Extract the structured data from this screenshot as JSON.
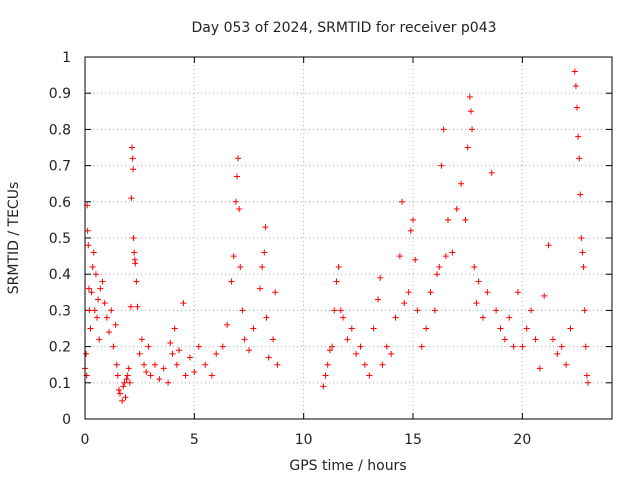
{
  "chart_data": {
    "type": "scatter",
    "title": "Day 053 of 2024, SRMTID for receiver p043",
    "xlabel": "GPS time / hours",
    "ylabel": "SRMTID / TECUs",
    "xlim": [
      0,
      24.1
    ],
    "ylim": [
      0,
      1
    ],
    "xticks": [
      0,
      5,
      10,
      15,
      20
    ],
    "xtick_labels": [
      "0",
      "5",
      "10",
      "15",
      "20"
    ],
    "yticks": [
      0,
      0.1,
      0.2,
      0.3,
      0.4,
      0.5,
      0.6,
      0.7,
      0.8,
      0.9,
      1
    ],
    "ytick_labels": [
      "0",
      "0.1",
      "0.2",
      "0.3",
      "0.4",
      "0.5",
      "0.6",
      "0.7",
      "0.8",
      "0.9",
      "1"
    ],
    "grid": true,
    "marker": "+",
    "color": "#ff0000",
    "series": [
      {
        "name": "SRMTID",
        "points": [
          [
            0.0,
            0.14
          ],
          [
            0.05,
            0.18
          ],
          [
            0.08,
            0.12
          ],
          [
            0.1,
            0.59
          ],
          [
            0.12,
            0.52
          ],
          [
            0.15,
            0.48
          ],
          [
            0.18,
            0.36
          ],
          [
            0.2,
            0.3
          ],
          [
            0.25,
            0.25
          ],
          [
            0.3,
            0.35
          ],
          [
            0.35,
            0.42
          ],
          [
            0.4,
            0.46
          ],
          [
            0.45,
            0.3
          ],
          [
            0.5,
            0.4
          ],
          [
            0.55,
            0.28
          ],
          [
            0.6,
            0.33
          ],
          [
            0.65,
            0.22
          ],
          [
            0.7,
            0.36
          ],
          [
            0.8,
            0.38
          ],
          [
            0.9,
            0.32
          ],
          [
            1.0,
            0.28
          ],
          [
            1.1,
            0.24
          ],
          [
            1.2,
            0.3
          ],
          [
            1.3,
            0.2
          ],
          [
            1.4,
            0.26
          ],
          [
            1.45,
            0.15
          ],
          [
            1.5,
            0.12
          ],
          [
            1.55,
            0.08
          ],
          [
            1.6,
            0.07
          ],
          [
            1.7,
            0.05
          ],
          [
            1.75,
            0.09
          ],
          [
            1.8,
            0.1
          ],
          [
            1.85,
            0.06
          ],
          [
            1.9,
            0.11
          ],
          [
            1.95,
            0.12
          ],
          [
            2.0,
            0.14
          ],
          [
            2.05,
            0.1
          ],
          [
            2.1,
            0.31
          ],
          [
            2.12,
            0.61
          ],
          [
            2.15,
            0.75
          ],
          [
            2.18,
            0.72
          ],
          [
            2.2,
            0.69
          ],
          [
            2.22,
            0.5
          ],
          [
            2.25,
            0.46
          ],
          [
            2.28,
            0.44
          ],
          [
            2.3,
            0.43
          ],
          [
            2.35,
            0.38
          ],
          [
            2.4,
            0.31
          ],
          [
            2.5,
            0.18
          ],
          [
            2.6,
            0.22
          ],
          [
            2.7,
            0.15
          ],
          [
            2.8,
            0.13
          ],
          [
            2.9,
            0.2
          ],
          [
            3.0,
            0.12
          ],
          [
            3.2,
            0.15
          ],
          [
            3.4,
            0.11
          ],
          [
            3.6,
            0.14
          ],
          [
            3.8,
            0.1
          ],
          [
            3.9,
            0.21
          ],
          [
            4.0,
            0.18
          ],
          [
            4.1,
            0.25
          ],
          [
            4.2,
            0.15
          ],
          [
            4.3,
            0.19
          ],
          [
            4.5,
            0.32
          ],
          [
            4.6,
            0.12
          ],
          [
            4.8,
            0.17
          ],
          [
            5.0,
            0.13
          ],
          [
            5.2,
            0.2
          ],
          [
            5.5,
            0.15
          ],
          [
            5.8,
            0.12
          ],
          [
            6.0,
            0.18
          ],
          [
            6.3,
            0.2
          ],
          [
            6.5,
            0.26
          ],
          [
            6.7,
            0.38
          ],
          [
            6.8,
            0.45
          ],
          [
            6.9,
            0.6
          ],
          [
            6.95,
            0.67
          ],
          [
            7.0,
            0.72
          ],
          [
            7.05,
            0.58
          ],
          [
            7.1,
            0.42
          ],
          [
            7.2,
            0.3
          ],
          [
            7.3,
            0.22
          ],
          [
            7.5,
            0.19
          ],
          [
            7.7,
            0.25
          ],
          [
            8.0,
            0.36
          ],
          [
            8.1,
            0.42
          ],
          [
            8.2,
            0.46
          ],
          [
            8.25,
            0.53
          ],
          [
            8.3,
            0.28
          ],
          [
            8.4,
            0.17
          ],
          [
            8.6,
            0.22
          ],
          [
            8.7,
            0.35
          ],
          [
            8.8,
            0.15
          ],
          [
            10.9,
            0.09
          ],
          [
            11.0,
            0.12
          ],
          [
            11.1,
            0.15
          ],
          [
            11.2,
            0.19
          ],
          [
            11.3,
            0.2
          ],
          [
            11.4,
            0.3
          ],
          [
            11.5,
            0.38
          ],
          [
            11.6,
            0.42
          ],
          [
            11.7,
            0.3
          ],
          [
            11.8,
            0.28
          ],
          [
            12.0,
            0.22
          ],
          [
            12.2,
            0.25
          ],
          [
            12.4,
            0.18
          ],
          [
            12.6,
            0.2
          ],
          [
            12.8,
            0.15
          ],
          [
            13.0,
            0.12
          ],
          [
            13.2,
            0.25
          ],
          [
            13.4,
            0.33
          ],
          [
            13.5,
            0.39
          ],
          [
            13.6,
            0.15
          ],
          [
            13.8,
            0.2
          ],
          [
            14.0,
            0.18
          ],
          [
            14.2,
            0.28
          ],
          [
            14.4,
            0.45
          ],
          [
            14.5,
            0.6
          ],
          [
            14.6,
            0.32
          ],
          [
            14.8,
            0.35
          ],
          [
            14.9,
            0.52
          ],
          [
            15.0,
            0.55
          ],
          [
            15.1,
            0.44
          ],
          [
            15.2,
            0.3
          ],
          [
            15.4,
            0.2
          ],
          [
            15.6,
            0.25
          ],
          [
            15.8,
            0.35
          ],
          [
            16.0,
            0.3
          ],
          [
            16.1,
            0.4
          ],
          [
            16.2,
            0.42
          ],
          [
            16.3,
            0.7
          ],
          [
            16.4,
            0.8
          ],
          [
            16.5,
            0.45
          ],
          [
            16.6,
            0.55
          ],
          [
            16.8,
            0.46
          ],
          [
            17.0,
            0.58
          ],
          [
            17.2,
            0.65
          ],
          [
            17.4,
            0.55
          ],
          [
            17.5,
            0.75
          ],
          [
            17.6,
            0.89
          ],
          [
            17.65,
            0.85
          ],
          [
            17.7,
            0.8
          ],
          [
            17.8,
            0.42
          ],
          [
            17.9,
            0.32
          ],
          [
            18.0,
            0.38
          ],
          [
            18.2,
            0.28
          ],
          [
            18.4,
            0.35
          ],
          [
            18.6,
            0.68
          ],
          [
            18.8,
            0.3
          ],
          [
            19.0,
            0.25
          ],
          [
            19.2,
            0.22
          ],
          [
            19.4,
            0.28
          ],
          [
            19.6,
            0.2
          ],
          [
            19.8,
            0.35
          ],
          [
            20.0,
            0.2
          ],
          [
            20.2,
            0.25
          ],
          [
            20.4,
            0.3
          ],
          [
            20.6,
            0.22
          ],
          [
            20.8,
            0.14
          ],
          [
            21.0,
            0.34
          ],
          [
            21.2,
            0.48
          ],
          [
            21.4,
            0.22
          ],
          [
            21.6,
            0.18
          ],
          [
            21.8,
            0.2
          ],
          [
            22.0,
            0.15
          ],
          [
            22.2,
            0.25
          ],
          [
            22.4,
            0.96
          ],
          [
            22.45,
            0.92
          ],
          [
            22.5,
            0.86
          ],
          [
            22.55,
            0.78
          ],
          [
            22.6,
            0.72
          ],
          [
            22.65,
            0.62
          ],
          [
            22.7,
            0.5
          ],
          [
            22.75,
            0.46
          ],
          [
            22.8,
            0.42
          ],
          [
            22.85,
            0.3
          ],
          [
            22.9,
            0.2
          ],
          [
            22.95,
            0.12
          ],
          [
            23.0,
            0.1
          ]
        ]
      }
    ]
  }
}
